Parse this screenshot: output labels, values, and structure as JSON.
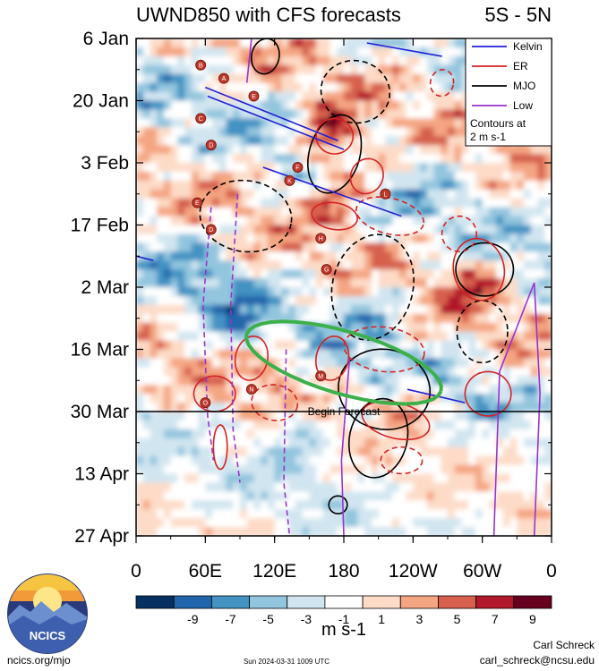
{
  "chart_data": {
    "type": "heatmap",
    "title": "UWND850 with CFS forecasts",
    "region": "5S - 5N",
    "y_tick_labels": [
      "6 Jan",
      "20 Jan",
      "3 Feb",
      "17 Feb",
      "2 Mar",
      "16 Mar",
      "30 Mar",
      "13 Apr",
      "27 Apr"
    ],
    "x_tick_labels": [
      "0",
      "60E",
      "120E",
      "180",
      "120W",
      "60W",
      "0"
    ],
    "x_ticks_deg": [
      0,
      60,
      120,
      180,
      240,
      300,
      360
    ],
    "y_ticks_day": [
      0,
      14,
      28,
      42,
      56,
      70,
      84,
      98,
      112
    ],
    "xlim_deg": [
      0,
      360
    ],
    "ylim_day": [
      0,
      112
    ],
    "forecast_start_day": 84,
    "annotation": "Begin Forecast",
    "colorbar": {
      "unit": "m s-1",
      "tick_labels": [
        "-9",
        "-7",
        "-5",
        "-3",
        "-1",
        "1",
        "3",
        "5",
        "7",
        "9"
      ],
      "levels": [
        -11,
        -9,
        -7,
        -5,
        -3,
        -1,
        1,
        3,
        5,
        7,
        9,
        11
      ],
      "colors": [
        "#053061",
        "#2166ac",
        "#4393c3",
        "#92c5de",
        "#d1e5f0",
        "#ffffff",
        "#fddbc7",
        "#f4a582",
        "#d6604d",
        "#b2182b",
        "#67001f"
      ]
    },
    "legend": {
      "position": "top-right",
      "entries": [
        {
          "name": "Kelvin",
          "color": "#1f1fd6"
        },
        {
          "name": "ER",
          "color": "#d62222"
        },
        {
          "name": "MJO",
          "color": "#000000"
        },
        {
          "name": "Low",
          "color": "#9933cc"
        }
      ],
      "note_line1": "Contours at",
      "note_line2": "2 m s-1"
    },
    "highlight_color": "#3cb04a",
    "markers": [
      "B",
      "A",
      "C",
      "D",
      "E",
      "D",
      "E",
      "F",
      "G",
      "H",
      "K",
      "L",
      "M",
      "N",
      "O"
    ]
  },
  "footer": {
    "left": "ncics.org/mjo",
    "center": "Sun 2024-03-31 1009 UTC",
    "right_name": "Carl Schreck",
    "right_email": "carl_schreck@ncsu.edu"
  },
  "logo": {
    "text": "NCICS"
  }
}
